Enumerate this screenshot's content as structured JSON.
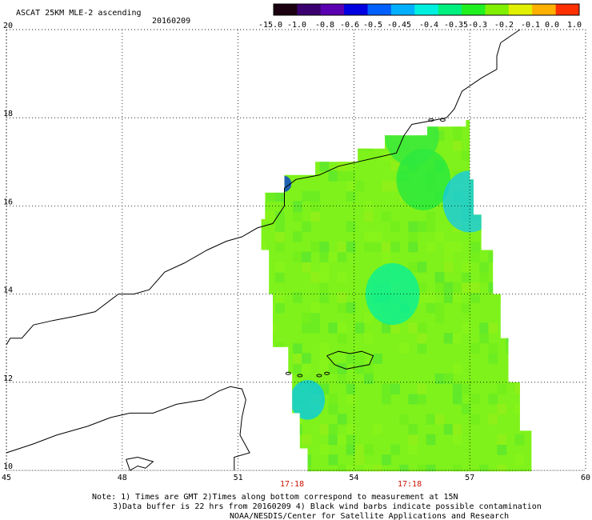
{
  "header": {
    "title": "ASCAT 25KM MLE-2 ascending",
    "date": "20160209"
  },
  "colorbar": {
    "labels": [
      "-15.0",
      "-1.0",
      "-0.8",
      "-0.6",
      "-0.5",
      "-0.45",
      "-0.4",
      "-0.35",
      "-0.3",
      "-0.2",
      "-0.1",
      "0.0",
      "1.0"
    ],
    "colors": [
      "#1a0010",
      "#3a0070",
      "#5a00b0",
      "#0000e0",
      "#0060ff",
      "#00b0ff",
      "#00f0e0",
      "#00f080",
      "#20f020",
      "#80f000",
      "#e0f000",
      "#ffb000",
      "#ff3000"
    ]
  },
  "axes": {
    "lon_ticks": [
      "45",
      "48",
      "51",
      "54",
      "57",
      "60"
    ],
    "lat_ticks": [
      "10",
      "12",
      "14",
      "16",
      "18",
      "20"
    ],
    "lon_range": [
      45,
      60
    ],
    "lat_range": [
      10,
      20
    ]
  },
  "times": [
    "17:18",
    "17:18"
  ],
  "notes": {
    "line1": "Note: 1) Times are GMT 2)Times along bottom correspond to measurement at 15N",
    "line2": "3)Data buffer is 22 hrs from 20160209 4) Black wind barbs indicate possible contamination",
    "line3": "NOAA/NESDIS/Center for Satellite Applications and Research"
  },
  "swath": {
    "base_color": "#7ef21a",
    "patches": [
      {
        "lon": 55.0,
        "lat": 14.0,
        "color": "#00f0a0"
      },
      {
        "lon": 52.8,
        "lat": 11.6,
        "color": "#00c8f0"
      },
      {
        "lon": 52.2,
        "lat": 16.5,
        "color": "#0030e0"
      },
      {
        "lon": 55.8,
        "lat": 16.6,
        "color": "#20e840"
      },
      {
        "lon": 55.5,
        "lat": 17.6,
        "color": "#30e840"
      },
      {
        "lon": 57.0,
        "lat": 16.1,
        "color": "#10c8f0"
      }
    ]
  }
}
